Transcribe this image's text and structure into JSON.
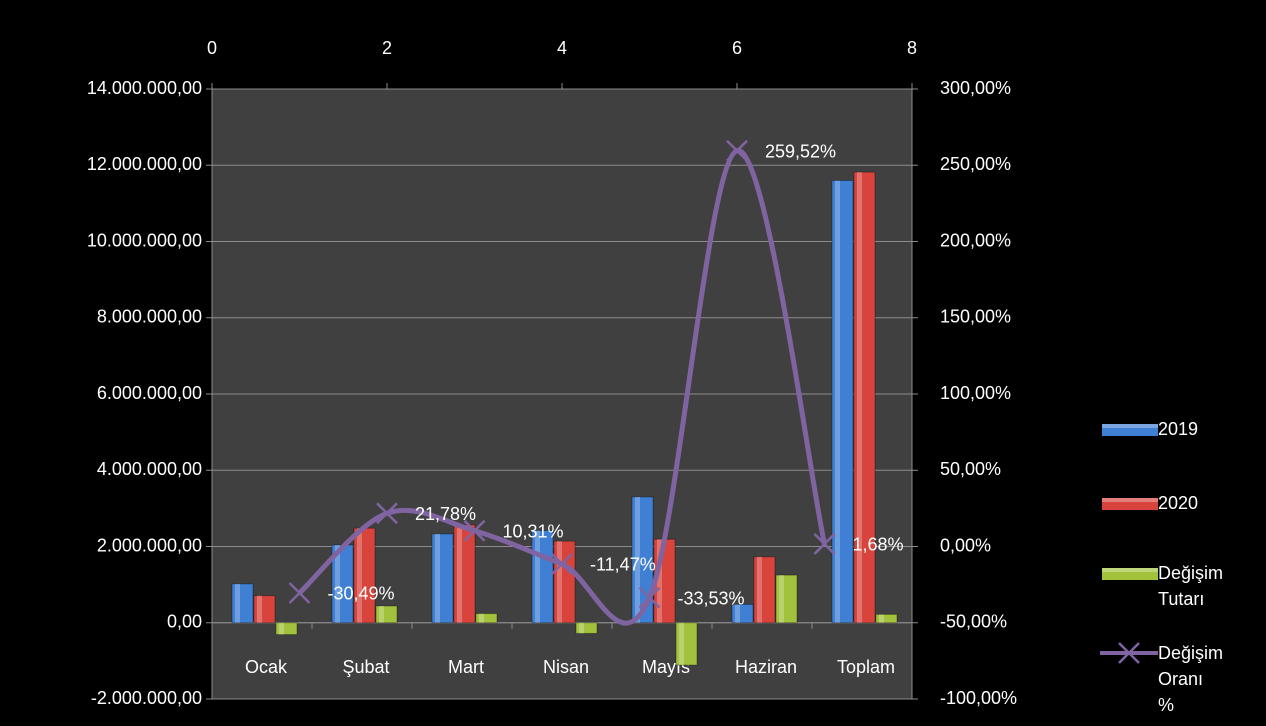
{
  "chart_data": {
    "type": "bar",
    "categories": [
      "Ocak",
      "Şubat",
      "Mart",
      "Nisan",
      "Mayıs",
      "Haziran",
      "Toplam"
    ],
    "series": [
      {
        "name": "2019",
        "type": "bar",
        "color": "#3f7fd4",
        "values": [
          1020000,
          2040000,
          2330000,
          2420000,
          3300000,
          480000,
          11600000
        ]
      },
      {
        "name": "2020",
        "type": "bar",
        "color": "#d8433c",
        "values": [
          710000,
          2480000,
          2570000,
          2140000,
          2190000,
          1730000,
          11820000
        ]
      },
      {
        "name": "Değişim Tutarı",
        "type": "bar",
        "color": "#a2c23c",
        "values": [
          -310000,
          440000,
          240000,
          -280000,
          -1110000,
          1250000,
          220000
        ]
      },
      {
        "name": "Değişim Oranı %",
        "type": "line",
        "axis": "y2",
        "color": "#8064a2",
        "x": [
          1,
          2,
          3,
          4,
          5,
          6,
          7
        ],
        "values": [
          -30.49,
          21.78,
          10.31,
          -11.47,
          -33.53,
          259.52,
          1.68
        ],
        "value_labels": [
          "-30,49%",
          "21,78%",
          "10,31%",
          "-11,47%",
          "-33,53%",
          "259,52%",
          "1,68%"
        ]
      }
    ],
    "ylim": [
      -2000000,
      14000000
    ],
    "yticks": [
      {
        "value": -2000000,
        "label": "-2.000.000,00"
      },
      {
        "value": 0,
        "label": "0,00"
      },
      {
        "value": 2000000,
        "label": "2.000.000,00"
      },
      {
        "value": 4000000,
        "label": "4.000.000,00"
      },
      {
        "value": 6000000,
        "label": "6.000.000,00"
      },
      {
        "value": 8000000,
        "label": "8.000.000,00"
      },
      {
        "value": 10000000,
        "label": "10.000.000,00"
      },
      {
        "value": 12000000,
        "label": "12.000.000,00"
      },
      {
        "value": 14000000,
        "label": "14.000.000,00"
      }
    ],
    "y2lim": [
      -100,
      300
    ],
    "y2ticks": [
      {
        "value": -100,
        "label": "-100,00%"
      },
      {
        "value": -50,
        "label": "-50,00%"
      },
      {
        "value": 0,
        "label": "0,00%"
      },
      {
        "value": 50,
        "label": "50,00%"
      },
      {
        "value": 100,
        "label": "100,00%"
      },
      {
        "value": 150,
        "label": "150,00%"
      },
      {
        "value": 200,
        "label": "200,00%"
      },
      {
        "value": 250,
        "label": "250,00%"
      },
      {
        "value": 300,
        "label": "300,00%"
      }
    ],
    "xlim": [
      0,
      8
    ],
    "xticks": [
      0,
      2,
      4,
      6,
      8
    ],
    "grid": true
  }
}
